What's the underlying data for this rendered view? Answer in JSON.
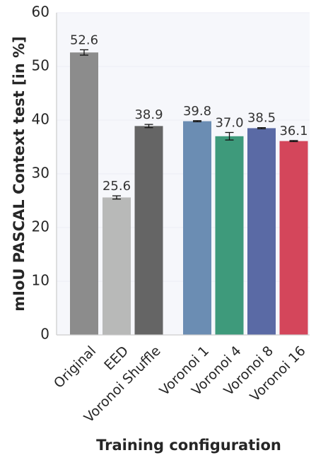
{
  "chart_data": {
    "type": "bar",
    "title": "",
    "xlabel": "Training configuration",
    "ylabel": "mIoU PASCAL Context test [in %]",
    "ylim": [
      0,
      60
    ],
    "yticks": [
      0,
      10,
      20,
      30,
      40,
      50,
      60
    ],
    "grid": true,
    "bars": [
      {
        "category": "Original",
        "value": 52.6,
        "label": "52.6",
        "error": 0.5,
        "color": "#8c8c8c"
      },
      {
        "category": "EED",
        "value": 25.6,
        "label": "25.6",
        "error": 0.3,
        "color": "#b8b9b8"
      },
      {
        "category": "Voronoi Shuffle",
        "value": 38.9,
        "label": "38.9",
        "error": 0.3,
        "color": "#656565"
      },
      {
        "category": "Voronoi 1",
        "value": 39.8,
        "label": "39.8",
        "error": 0.1,
        "color": "#6b8db3"
      },
      {
        "category": "Voronoi 4",
        "value": 37.0,
        "label": "37.0",
        "error": 0.7,
        "color": "#3e9a7b"
      },
      {
        "category": "Voronoi 8",
        "value": 38.5,
        "label": "38.5",
        "error": 0.1,
        "color": "#5a6aa5"
      },
      {
        "category": "Voronoi 16",
        "value": 36.1,
        "label": "36.1",
        "error": 0.1,
        "color": "#d4465b"
      }
    ]
  }
}
